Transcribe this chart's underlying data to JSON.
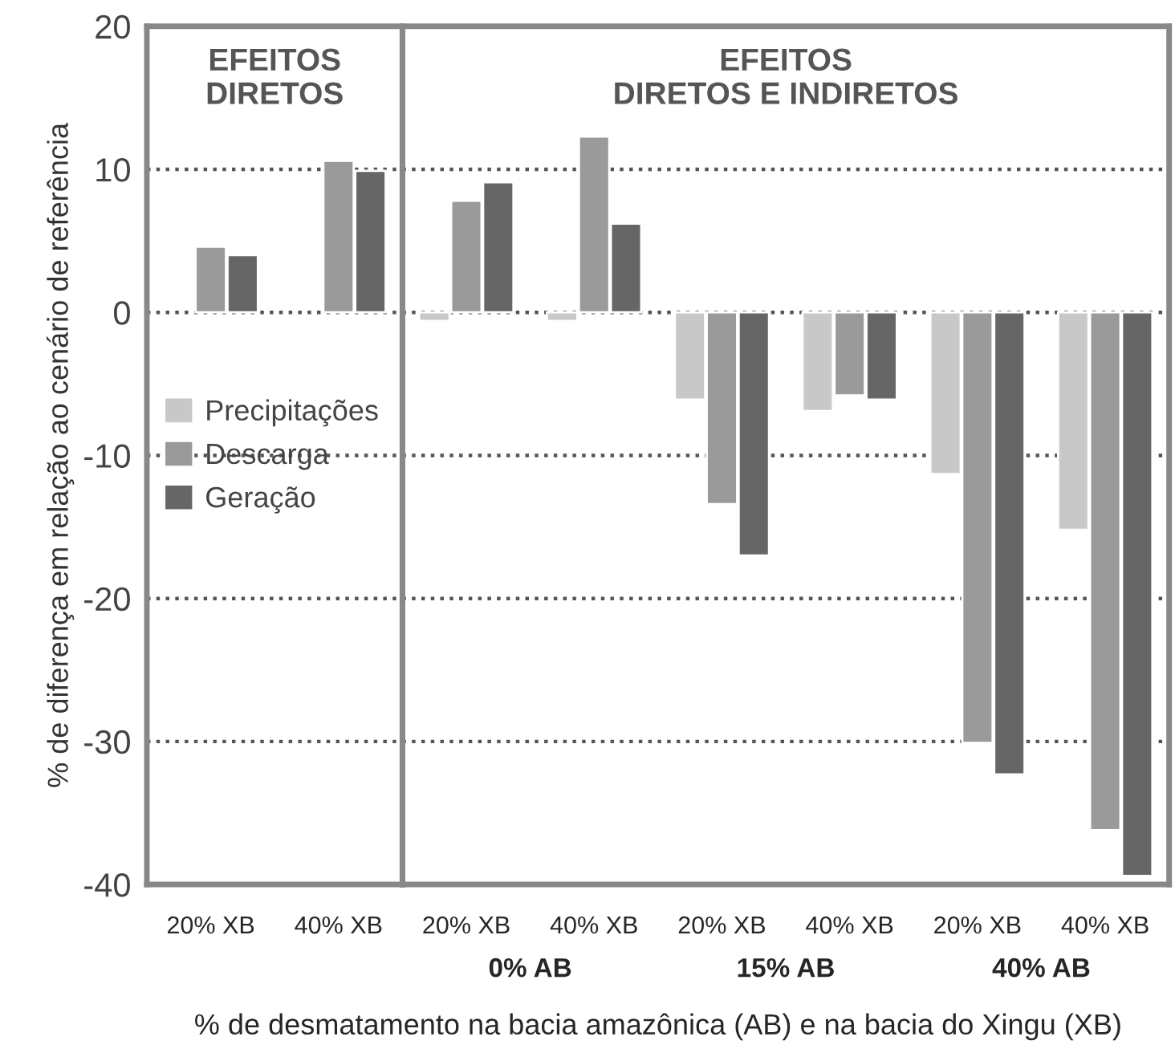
{
  "chart_data": [
    {
      "type": "bar",
      "categories": [
        "20% XB",
        "40% XB"
      ],
      "series": [
        {
          "name": "Precipitações",
          "color": "#c8c8c8",
          "values": [
            null,
            null
          ]
        },
        {
          "name": "Descarga",
          "color": "#9a9a9a",
          "values": [
            4.6,
            10.6
          ]
        },
        {
          "name": "Geração",
          "color": "#666666",
          "values": [
            4.0,
            9.9
          ]
        }
      ],
      "ylim": [
        -40,
        20
      ],
      "yticks": [
        -40,
        -30,
        -20,
        -10,
        0,
        10,
        20
      ],
      "ylabel": "% de diferença em relação ao cenário de referência",
      "annotations": [
        "EFEITOS\nDIRETOS"
      ],
      "grid": "y",
      "legend": "center left"
    },
    {
      "type": "bar",
      "categories": [
        "20% XB",
        "40% XB",
        "20% XB",
        "40% XB",
        "20% XB",
        "40% XB"
      ],
      "series": [
        {
          "color": "#c8c8c8",
          "values": [
            -0.6,
            -0.6,
            -6.1,
            -6.9,
            -11.3,
            -15.2
          ]
        },
        {
          "color": "#9a9a9a",
          "values": [
            7.8,
            12.3,
            -13.4,
            -5.8,
            -30.1,
            -36.2
          ]
        },
        {
          "color": "#666666",
          "values": [
            9.1,
            6.2,
            -17.0,
            -6.1,
            -32.3,
            -39.4
          ]
        }
      ],
      "ylim": [
        -40,
        20
      ],
      "yticks": [
        -40,
        -30,
        -20,
        -10,
        0,
        10,
        20
      ],
      "tick_labels": "x",
      "xlabel": "% de desmatamento na bacia amazônica (AB) e na bacia do Xingu (XB)",
      "annotations": [
        "EFEITOS\nDIRETOS E INDIRETOS",
        "0% AB",
        "15% AB",
        "40% AB"
      ],
      "grid": "y"
    }
  ]
}
